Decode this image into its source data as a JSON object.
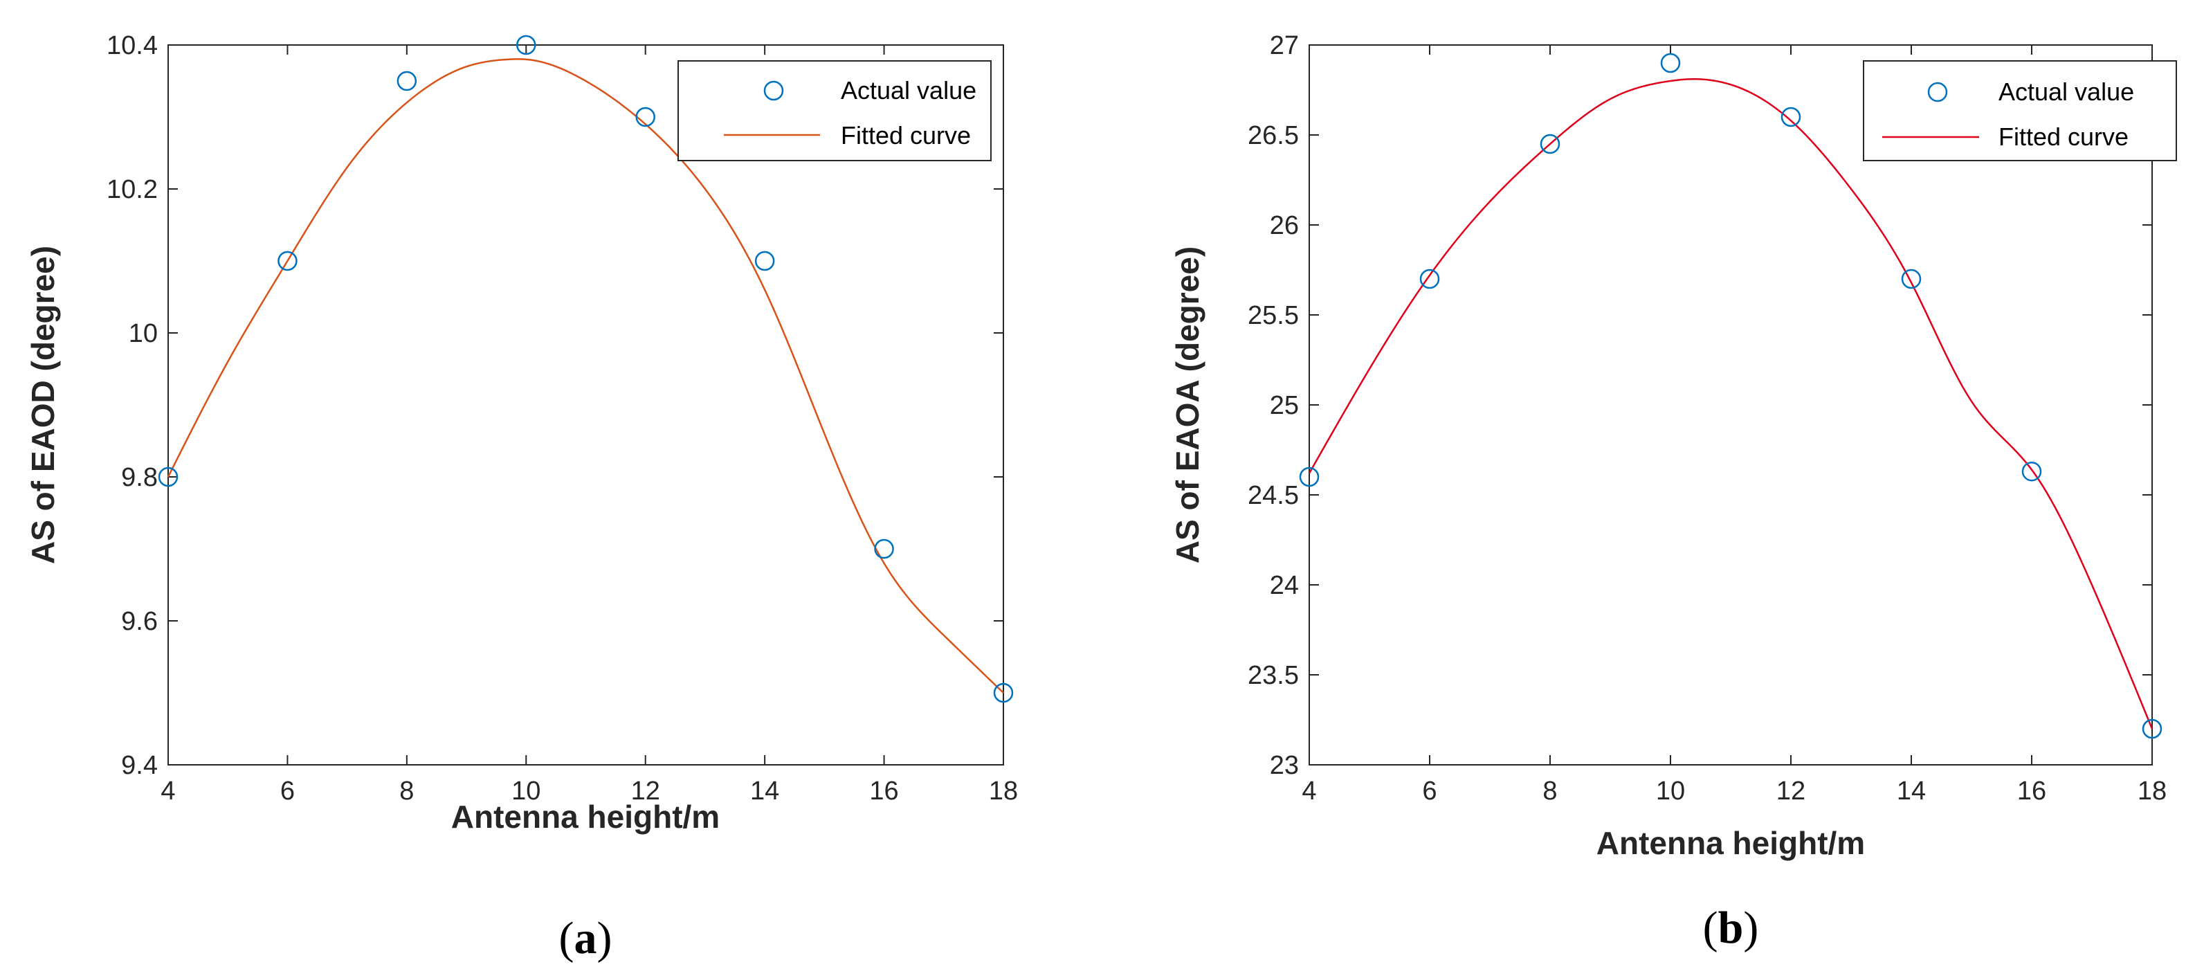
{
  "chart_data": [
    {
      "type": "scatter",
      "panel_label": "a",
      "caption_open": "(",
      "caption_close": ")",
      "xlabel": "Antenna height/m",
      "ylabel": "AS of EAOD (degree)",
      "xlim": [
        4,
        18
      ],
      "ylim": [
        9.4,
        10.4
      ],
      "xticks": [
        4,
        6,
        8,
        10,
        12,
        14,
        16,
        18
      ],
      "yticks": [
        9.4,
        9.6,
        9.8,
        10,
        10.2,
        10.4
      ],
      "ytick_labels": [
        "9.4",
        "9.6",
        "9.8",
        "10",
        "10.2",
        "10.4"
      ],
      "legend_position": "top-right",
      "series": [
        {
          "name": "Actual value",
          "kind": "markers",
          "color": "#0072BD",
          "x": [
            4,
            6,
            8,
            10,
            12,
            14,
            16,
            18
          ],
          "y": [
            9.8,
            10.1,
            10.35,
            10.4,
            10.3,
            10.1,
            9.7,
            9.5
          ]
        },
        {
          "name": "Fitted curve",
          "kind": "line",
          "color": "#D95319",
          "x": [
            4,
            5,
            6,
            7,
            8,
            9,
            9.7,
            10,
            11,
            12,
            13,
            14,
            15,
            16,
            17,
            18
          ],
          "y": [
            9.8,
            9.96,
            10.1,
            10.23,
            10.32,
            10.37,
            10.38,
            10.38,
            10.35,
            10.29,
            10.2,
            10.06,
            9.86,
            9.68,
            9.58,
            9.5
          ]
        }
      ]
    },
    {
      "type": "scatter",
      "panel_label": "b",
      "caption_open": "(",
      "caption_close": ")",
      "xlabel": "Antenna height/m",
      "ylabel": "AS of EAOA (degree)",
      "xlim": [
        4,
        18
      ],
      "ylim": [
        23,
        27
      ],
      "xticks": [
        4,
        6,
        8,
        10,
        12,
        14,
        16,
        18
      ],
      "yticks": [
        23,
        23.5,
        24,
        24.5,
        25,
        25.5,
        26,
        26.5,
        27
      ],
      "ytick_labels": [
        "23",
        "23.5",
        "24",
        "24.5",
        "25",
        "25.5",
        "26",
        "26.5",
        "27"
      ],
      "legend_position": "top-right",
      "series": [
        {
          "name": "Actual value",
          "kind": "markers",
          "color": "#0072BD",
          "x": [
            4,
            6,
            8,
            10,
            12,
            14,
            16,
            18
          ],
          "y": [
            24.6,
            25.7,
            26.45,
            26.9,
            26.6,
            25.7,
            24.63,
            23.2
          ]
        },
        {
          "name": "Fitted curve",
          "kind": "line",
          "color": "#E0001B",
          "x": [
            4,
            5,
            6,
            7,
            8,
            9,
            10,
            10.3,
            11,
            12,
            13,
            14,
            15,
            16,
            17,
            18
          ],
          "y": [
            24.62,
            25.2,
            25.72,
            26.13,
            26.45,
            26.7,
            26.8,
            26.81,
            26.78,
            26.58,
            26.2,
            25.68,
            25.02,
            24.64,
            24.0,
            23.2
          ]
        }
      ]
    }
  ]
}
